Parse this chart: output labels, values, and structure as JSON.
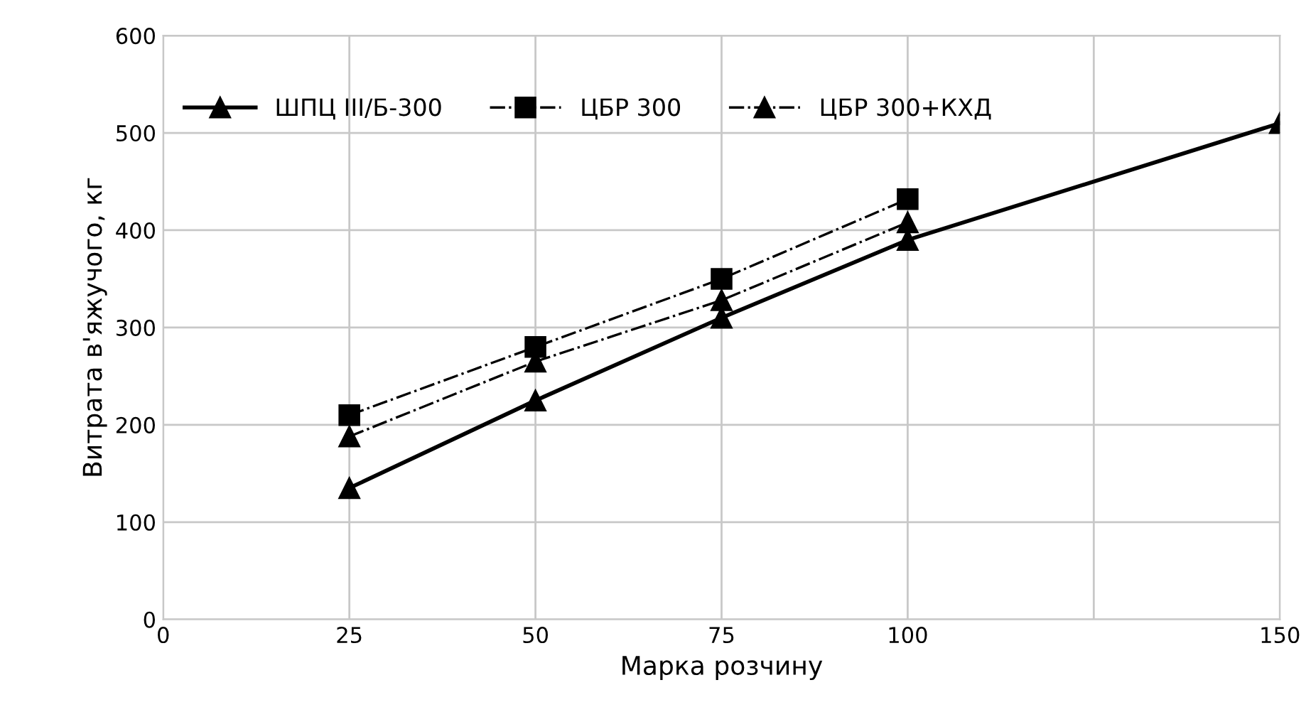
{
  "chart_data": {
    "type": "line",
    "xlabel": "Марка розчину",
    "ylabel": "Витрата в'яжучого, кг",
    "categories": [
      "0",
      "25",
      "50",
      "75",
      "100",
      null,
      "150"
    ],
    "ylim": [
      0,
      600
    ],
    "yticks": [
      0,
      100,
      200,
      300,
      400,
      500,
      600
    ],
    "grid": true,
    "legend": "top left",
    "series": [
      {
        "name": "ШПЦ III/Б-300",
        "color": "#000000",
        "marker": "triangle",
        "line_style": "solid",
        "values": [
          null,
          135,
          225,
          310,
          390,
          null,
          510
        ]
      },
      {
        "name": "ЦБР 300",
        "color": "#000000",
        "marker": "square",
        "line_style": "dashdot",
        "values": [
          null,
          210,
          280,
          350,
          432,
          null,
          null
        ]
      },
      {
        "name": "ЦБР 300+КХД",
        "color": "#000000",
        "marker": "triangle",
        "line_style": "dashdot",
        "values": [
          null,
          188,
          265,
          328,
          408,
          null,
          null
        ]
      }
    ]
  }
}
